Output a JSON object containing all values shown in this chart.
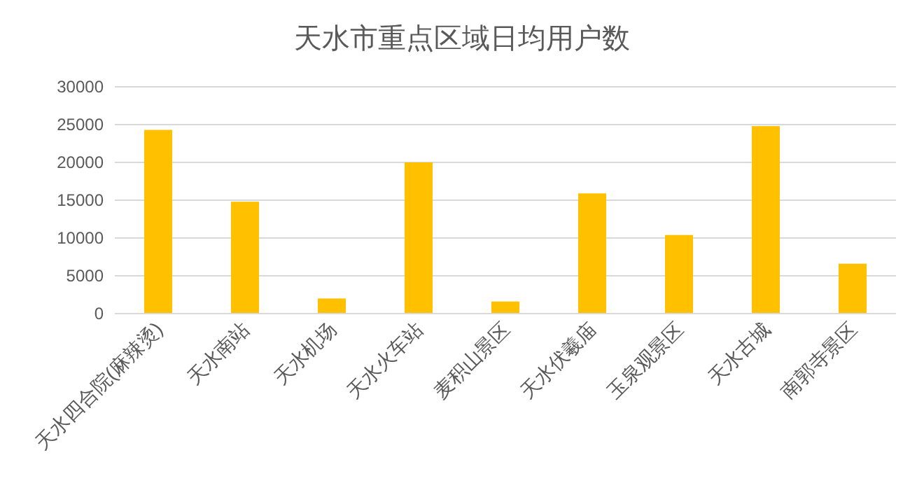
{
  "chart_data": {
    "type": "bar",
    "title": "天水市重点区域日均用户数",
    "categories": [
      "天水四合院(麻辣烫)",
      "天水南站",
      "天水机场",
      "天水火车站",
      "麦积山景区",
      "天水伏羲庙",
      "玉泉观景区",
      "天水古城",
      "南郭寺景区"
    ],
    "values": [
      24300,
      14800,
      2000,
      20000,
      1600,
      15900,
      10400,
      24800,
      6600
    ],
    "color": "#ffc000",
    "ylim": [
      0,
      30000
    ],
    "yticks": [
      0,
      5000,
      10000,
      15000,
      20000,
      25000,
      30000
    ],
    "grid": "y"
  }
}
